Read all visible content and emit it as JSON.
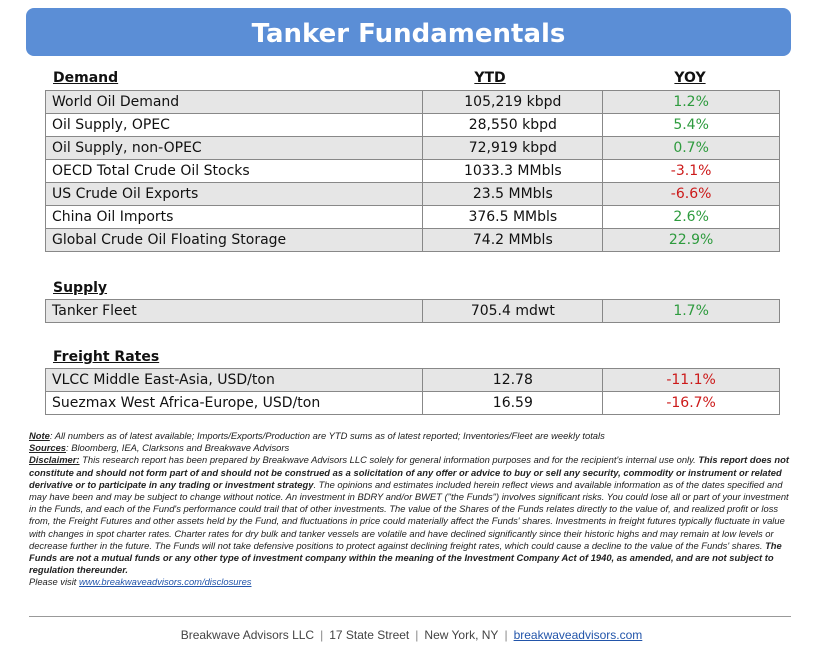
{
  "title": "Tanker Fundamentals",
  "columns": {
    "ytd": "YTD",
    "yoy": "YOY"
  },
  "demand": {
    "heading": "Demand",
    "rows": [
      {
        "label": "World Oil Demand",
        "ytd": "105,219 kbpd",
        "yoy": "1.2%"
      },
      {
        "label": "Oil Supply, OPEC",
        "ytd": "28,550 kbpd",
        "yoy": "5.4%"
      },
      {
        "label": "Oil Supply, non-OPEC",
        "ytd": "72,919 kbpd",
        "yoy": "0.7%"
      },
      {
        "label": "OECD Total Crude Oil Stocks",
        "ytd": "1033.3 MMbls",
        "yoy": "-3.1%"
      },
      {
        "label": "US Crude Oil Exports",
        "ytd": "23.5 MMbls",
        "yoy": "-6.6%"
      },
      {
        "label": "China Oil Imports",
        "ytd": "376.5 MMbls",
        "yoy": "2.6%"
      },
      {
        "label": "Global Crude Oil Floating Storage",
        "ytd": "74.2 MMbls",
        "yoy": "22.9%"
      }
    ]
  },
  "supply": {
    "heading": "Supply",
    "rows": [
      {
        "label": "Tanker Fleet",
        "ytd": "705.4 mdwt",
        "yoy": "1.7%"
      }
    ]
  },
  "freight": {
    "heading": "Freight Rates",
    "rows": [
      {
        "label": "VLCC Middle East-Asia, USD/ton",
        "ytd": "12.78",
        "yoy": "-11.1%"
      },
      {
        "label": "Suezmax West Africa-Europe, USD/ton",
        "ytd": "16.59",
        "yoy": "-16.7%"
      }
    ]
  },
  "colors": {
    "banner": "#5b8ed6",
    "positive": "#2e9b3e",
    "negative": "#cc1a1a"
  },
  "notes": {
    "note_label": "Note",
    "note_text": ": All numbers as of latest available; Imports/Exports/Production are YTD sums as of latest reported; Inventories/Fleet are weekly totals",
    "sources_label": "Sources",
    "sources_text": ": Bloomberg, IEA, Clarksons and Breakwave Advisors",
    "disclaimer_label": "Disclaimer:",
    "disclaimer_text1": " This research report has been prepared by Breakwave Advisors LLC solely for general information purposes and for the recipient's internal use only. ",
    "disclaimer_bold1": "This report does not constitute and should not form part of and should not be construed as a solicitation of any offer or advice to buy or sell any security, commodity or instrument or related derivative or to participate in any trading or investment strategy",
    "disclaimer_text2": ". The opinions and estimates included herein reflect views and available information as of the dates specified and may have been and may be subject to change without notice. An investment in BDRY and/or BWET (\"the Funds\") involves significant risks. You could lose all or part of your investment in the Funds, and each of the Fund's performance could trail that of other investments. The value of the Shares of the Funds relates directly to the value of, and realized profit or loss from, the Freight Futures and other assets held by the Fund, and fluctuations in price could materially affect the Funds' shares. Investments in freight futures typically fluctuate in value with changes in spot charter rates. Charter rates for dry bulk and tanker vessels are volatile and have declined significantly since their historic highs and may remain at low levels or decrease further in the future. The Funds will not take defensive positions to protect against declining freight rates, which could cause a decline to the value of the Funds' shares. ",
    "disclaimer_bold2": "The Funds are not a mutual funds or any other type of investment company within the meaning of the Investment Company Act of 1940, as amended, and are not subject to regulation thereunder.",
    "visit_text": "Please visit ",
    "visit_link": "www.breakwaveadvisors.com/disclosures"
  },
  "footer": {
    "company": "Breakwave Advisors LLC",
    "street": "17 State Street",
    "city": "New York, NY",
    "website": "breakwaveadvisors.com"
  }
}
